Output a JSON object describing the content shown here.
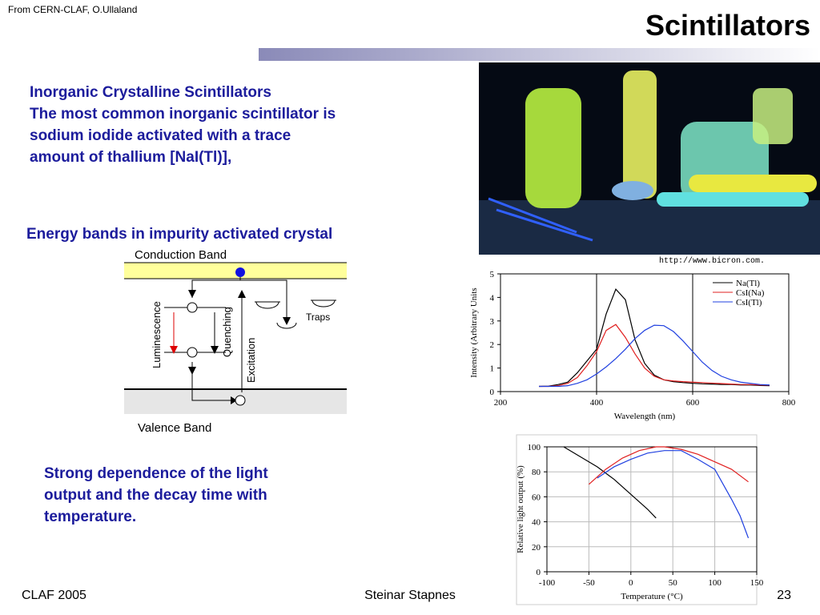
{
  "header": {
    "source": "From CERN-CLAF, O.Ullaland",
    "title": "Scintillators"
  },
  "intro": {
    "heading": "Inorganic Crystalline Scintillators",
    "lines": [
      "The most common inorganic scintillator is",
      "sodium iodide activated with a trace",
      "amount of thallium [NaI(Tl)],"
    ]
  },
  "diagram": {
    "caption": "Energy bands in impurity activated crystal",
    "conduction": "Conduction Band",
    "valence": "Valence Band",
    "luminescence": "Luminescence",
    "quenching": "Quenching",
    "excitation": "Excitation",
    "traps": "Traps"
  },
  "photo_credit": "http://www.bicron.com.",
  "temperature_note": [
    "Strong dependence of the light",
    "output and the decay time with",
    "temperature."
  ],
  "chart_data": [
    {
      "type": "line",
      "xlabel": "Wavelength (nm)",
      "ylabel": "Intensity (Arbitrary Units",
      "x": [
        280,
        300,
        320,
        340,
        360,
        380,
        400,
        420,
        440,
        460,
        480,
        500,
        520,
        540,
        560,
        580,
        600,
        620,
        640,
        660,
        680,
        700,
        720,
        740,
        760
      ],
      "series": [
        {
          "name": "Na(Tl)",
          "color": "#000000",
          "values": [
            0.22,
            0.23,
            0.3,
            0.4,
            0.8,
            1.3,
            1.8,
            3.3,
            4.35,
            3.9,
            2.2,
            1.2,
            0.7,
            0.5,
            0.42,
            0.38,
            0.35,
            0.33,
            0.32,
            0.3,
            0.3,
            0.28,
            0.28,
            0.26,
            0.25
          ]
        },
        {
          "name": "CsI(Na)",
          "color": "#e02020",
          "values": [
            0.22,
            0.22,
            0.25,
            0.35,
            0.6,
            1.1,
            1.7,
            2.6,
            2.85,
            2.3,
            1.6,
            1.0,
            0.65,
            0.5,
            0.45,
            0.42,
            0.4,
            0.38,
            0.36,
            0.34,
            0.32,
            0.3,
            0.3,
            0.28,
            0.27
          ]
        },
        {
          "name": "CsI(Tl)",
          "color": "#2040e0",
          "values": [
            0.22,
            0.22,
            0.22,
            0.25,
            0.35,
            0.5,
            0.75,
            1.05,
            1.4,
            1.8,
            2.25,
            2.6,
            2.82,
            2.8,
            2.55,
            2.15,
            1.7,
            1.25,
            0.9,
            0.65,
            0.5,
            0.4,
            0.35,
            0.3,
            0.28
          ]
        }
      ],
      "xlim": [
        200,
        800
      ],
      "ylim": [
        0,
        5
      ],
      "xticks": [
        200,
        400,
        600,
        800
      ],
      "yticks": [
        0,
        1,
        2,
        3,
        4,
        5
      ],
      "xgrid": true,
      "ygrid": false,
      "legend": "upper right"
    },
    {
      "type": "line",
      "xlabel": "Temperature (°C)",
      "ylabel": "Relative light output (%)",
      "series": [
        {
          "color": "#000000",
          "x": [
            -80,
            -60,
            -40,
            -20,
            0,
            20,
            30
          ],
          "values": [
            100,
            92,
            84,
            74,
            62,
            50,
            43
          ]
        },
        {
          "color": "#e02020",
          "x": [
            -50,
            -30,
            -10,
            10,
            30,
            40,
            60,
            80,
            100,
            120,
            140
          ],
          "values": [
            70,
            82,
            91,
            97,
            100,
            100,
            98,
            94,
            88,
            82,
            72
          ]
        },
        {
          "color": "#2040e0",
          "x": [
            -40,
            -20,
            0,
            20,
            40,
            60,
            80,
            100,
            110,
            120,
            130,
            140
          ],
          "values": [
            75,
            84,
            90,
            95,
            97,
            97,
            90,
            82,
            70,
            58,
            45,
            27
          ]
        }
      ],
      "xlim": [
        -100,
        150
      ],
      "ylim": [
        0,
        100
      ],
      "xticks": [
        -100,
        -50,
        0,
        50,
        100,
        150
      ],
      "yticks": [
        0,
        20,
        40,
        60,
        80,
        100
      ],
      "xgrid": true,
      "ygrid": true
    }
  ],
  "footer": {
    "left": "CLAF 2005",
    "center": "Steinar Stapnes",
    "page": "23"
  }
}
